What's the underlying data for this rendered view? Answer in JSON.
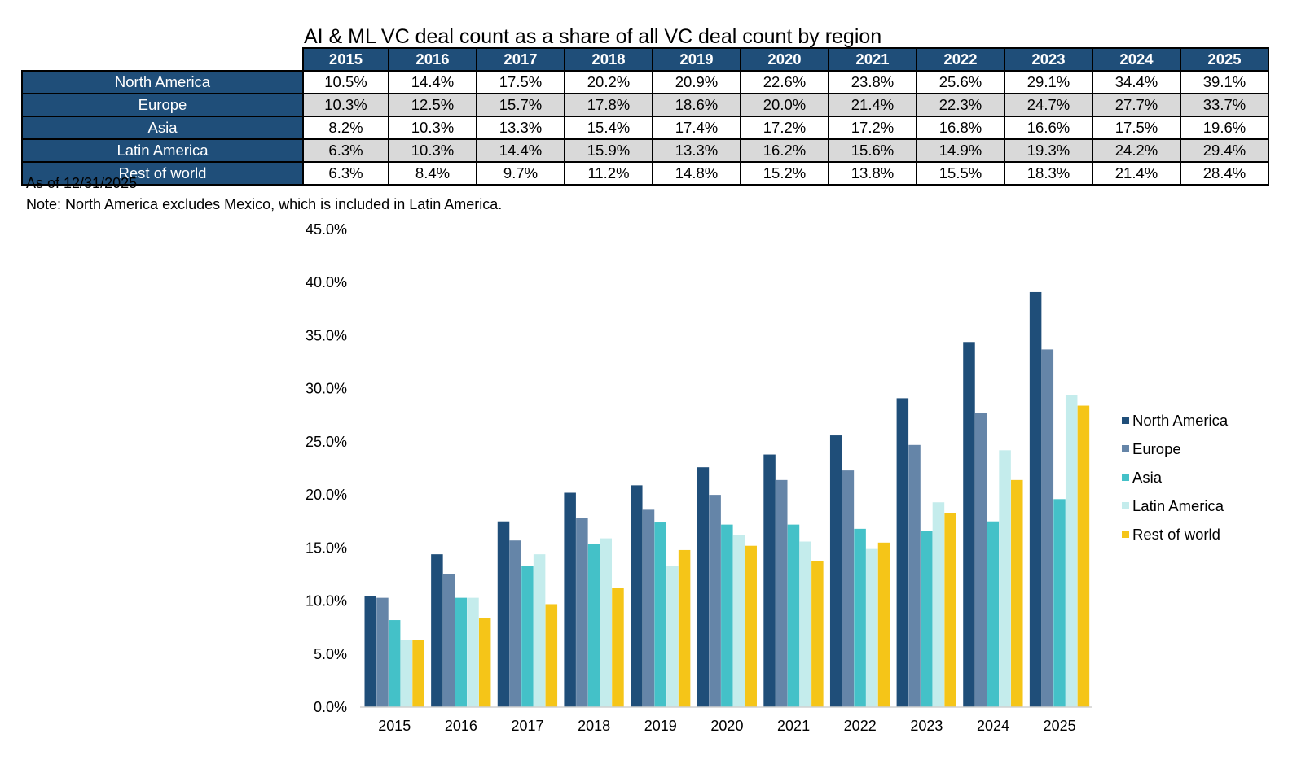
{
  "title": "AI & ML VC deal count as a share of all VC deal count by region",
  "as_of": "As of 12/31/2025",
  "note": "Note: North America excludes Mexico, which is included in Latin America.",
  "table": {
    "years": [
      "2015",
      "2016",
      "2017",
      "2018",
      "2019",
      "2020",
      "2021",
      "2022",
      "2023",
      "2024",
      "2025"
    ],
    "rows": [
      {
        "region": "North America",
        "values": [
          "10.5%",
          "14.4%",
          "17.5%",
          "20.2%",
          "20.9%",
          "22.6%",
          "23.8%",
          "25.6%",
          "29.1%",
          "34.4%",
          "39.1%"
        ]
      },
      {
        "region": "Europe",
        "values": [
          "10.3%",
          "12.5%",
          "15.7%",
          "17.8%",
          "18.6%",
          "20.0%",
          "21.4%",
          "22.3%",
          "24.7%",
          "27.7%",
          "33.7%"
        ]
      },
      {
        "region": "Asia",
        "values": [
          "8.2%",
          "10.3%",
          "13.3%",
          "15.4%",
          "17.4%",
          "17.2%",
          "17.2%",
          "16.8%",
          "16.6%",
          "17.5%",
          "19.6%"
        ]
      },
      {
        "region": "Latin America",
        "values": [
          "6.3%",
          "10.3%",
          "14.4%",
          "15.9%",
          "13.3%",
          "16.2%",
          "15.6%",
          "14.9%",
          "19.3%",
          "24.2%",
          "29.4%"
        ]
      },
      {
        "region": "Rest of world",
        "values": [
          "6.3%",
          "8.4%",
          "9.7%",
          "11.2%",
          "14.8%",
          "15.2%",
          "13.8%",
          "15.5%",
          "18.3%",
          "21.4%",
          "28.4%"
        ]
      }
    ]
  },
  "chart_data": {
    "type": "bar",
    "categories": [
      "2015",
      "2016",
      "2017",
      "2018",
      "2019",
      "2020",
      "2021",
      "2022",
      "2023",
      "2024",
      "2025"
    ],
    "series": [
      {
        "name": "North America",
        "color": "#1f4e79",
        "values": [
          10.5,
          14.4,
          17.5,
          20.2,
          20.9,
          22.6,
          23.8,
          25.6,
          29.1,
          34.4,
          39.1
        ]
      },
      {
        "name": "Europe",
        "color": "#6585a8",
        "values": [
          10.3,
          12.5,
          15.7,
          17.8,
          18.6,
          20.0,
          21.4,
          22.3,
          24.7,
          27.7,
          33.7
        ]
      },
      {
        "name": "Asia",
        "color": "#44c1c8",
        "values": [
          8.2,
          10.3,
          13.3,
          15.4,
          17.4,
          17.2,
          17.2,
          16.8,
          16.6,
          17.5,
          19.6
        ]
      },
      {
        "name": "Latin America",
        "color": "#c4ecec",
        "values": [
          6.3,
          10.3,
          14.4,
          15.9,
          13.3,
          16.2,
          15.6,
          14.9,
          19.3,
          24.2,
          29.4
        ]
      },
      {
        "name": "Rest of world",
        "color": "#f5c518",
        "values": [
          6.3,
          8.4,
          9.7,
          11.2,
          14.8,
          15.2,
          13.8,
          15.5,
          18.3,
          21.4,
          28.4
        ]
      }
    ],
    "ylim": [
      0,
      45
    ],
    "yticks": [
      "0.0%",
      "5.0%",
      "10.0%",
      "15.0%",
      "20.0%",
      "25.0%",
      "30.0%",
      "35.0%",
      "40.0%",
      "45.0%"
    ],
    "ystep": 5,
    "title": "",
    "xlabel": "",
    "ylabel": "",
    "grid": false,
    "legend": "right"
  }
}
